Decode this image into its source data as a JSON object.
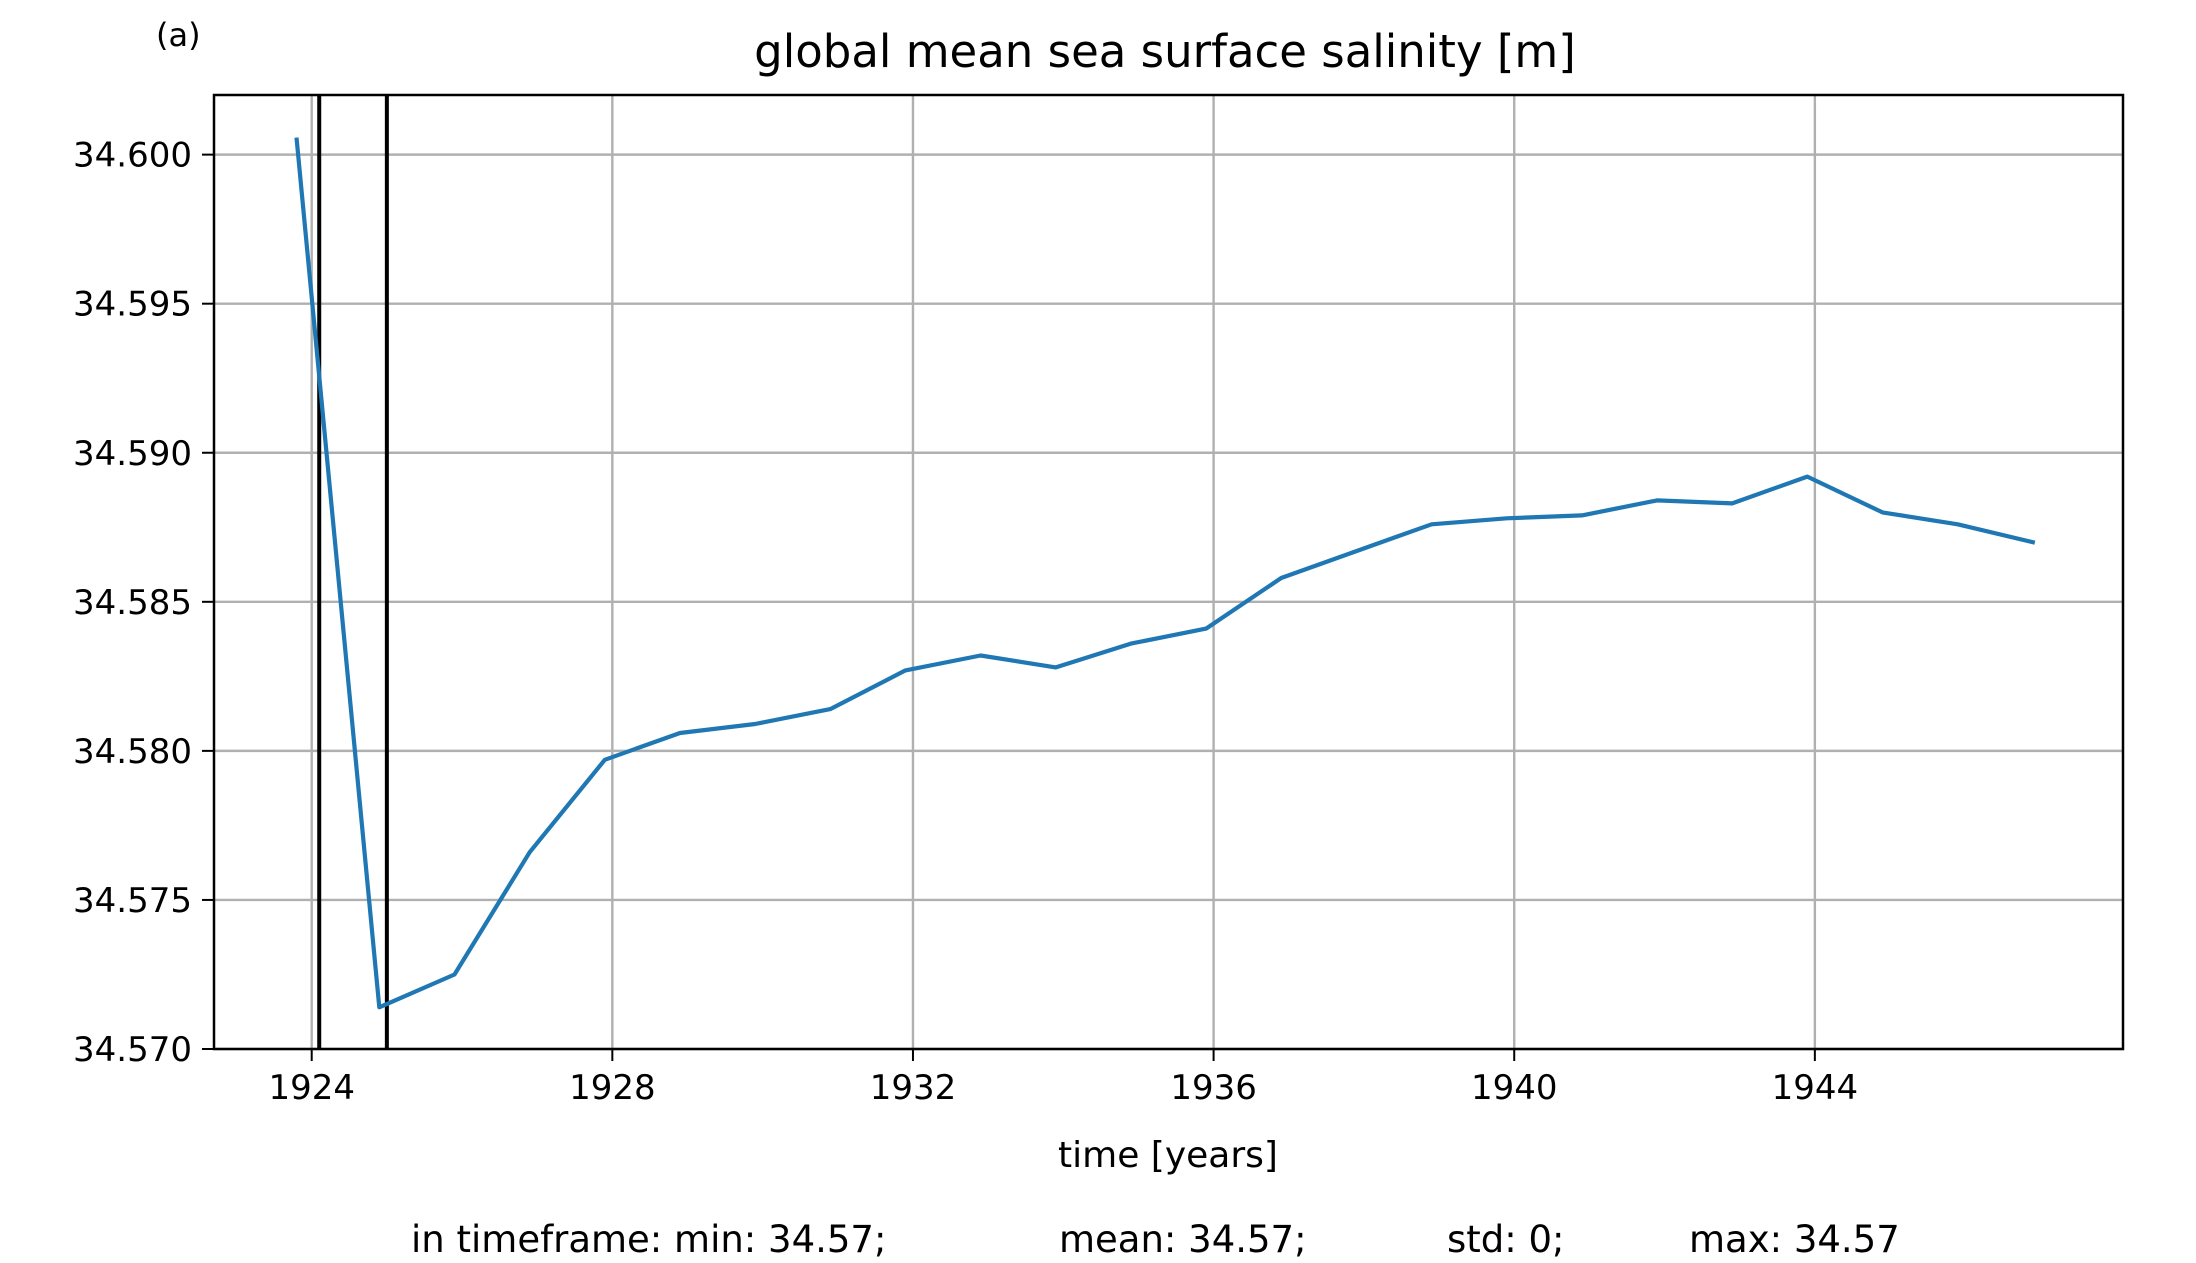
{
  "chart_data": {
    "type": "line",
    "panel_label": "(a)",
    "title": "global mean sea surface salinity [m]",
    "xlabel": "time [years]",
    "ylabel": "",
    "xlim": [
      1922.7,
      1948.1
    ],
    "ylim": [
      34.57,
      34.602
    ],
    "x_ticks": [
      1924,
      1928,
      1932,
      1936,
      1940,
      1944
    ],
    "x_tick_labels": [
      "1924",
      "1928",
      "1932",
      "1936",
      "1940",
      "1944"
    ],
    "y_ticks": [
      34.57,
      34.575,
      34.58,
      34.585,
      34.59,
      34.595,
      34.6
    ],
    "y_tick_labels": [
      "34.570",
      "34.575",
      "34.580",
      "34.585",
      "34.590",
      "34.595",
      "34.600"
    ],
    "grid": true,
    "line_color": "#1f77b4",
    "vline_color": "#000000",
    "vlines_x": [
      1924.1,
      1925.0
    ],
    "series": [
      {
        "x": [
          1923.8,
          1924.9,
          1925.9,
          1926.9,
          1927.9,
          1928.9,
          1929.9,
          1930.9,
          1931.9,
          1932.9,
          1933.9,
          1934.9,
          1935.9,
          1936.9,
          1937.9,
          1938.9,
          1939.9,
          1940.9,
          1941.9,
          1942.9,
          1943.9,
          1944.9,
          1945.9,
          1946.9
        ],
        "values": [
          34.6005,
          34.5714,
          34.5725,
          34.5766,
          34.5797,
          34.5806,
          34.5809,
          34.5814,
          34.5827,
          34.5832,
          34.5828,
          34.5836,
          34.5841,
          34.5858,
          34.5867,
          34.5876,
          34.5878,
          34.5879,
          34.5884,
          34.5883,
          34.5892,
          34.588,
          34.5876,
          34.587
        ]
      }
    ],
    "stats": {
      "min": "in timeframe: min: 34.57;",
      "mean": "mean: 34.57;",
      "std": "std: 0;",
      "max": "max: 34.57"
    }
  }
}
